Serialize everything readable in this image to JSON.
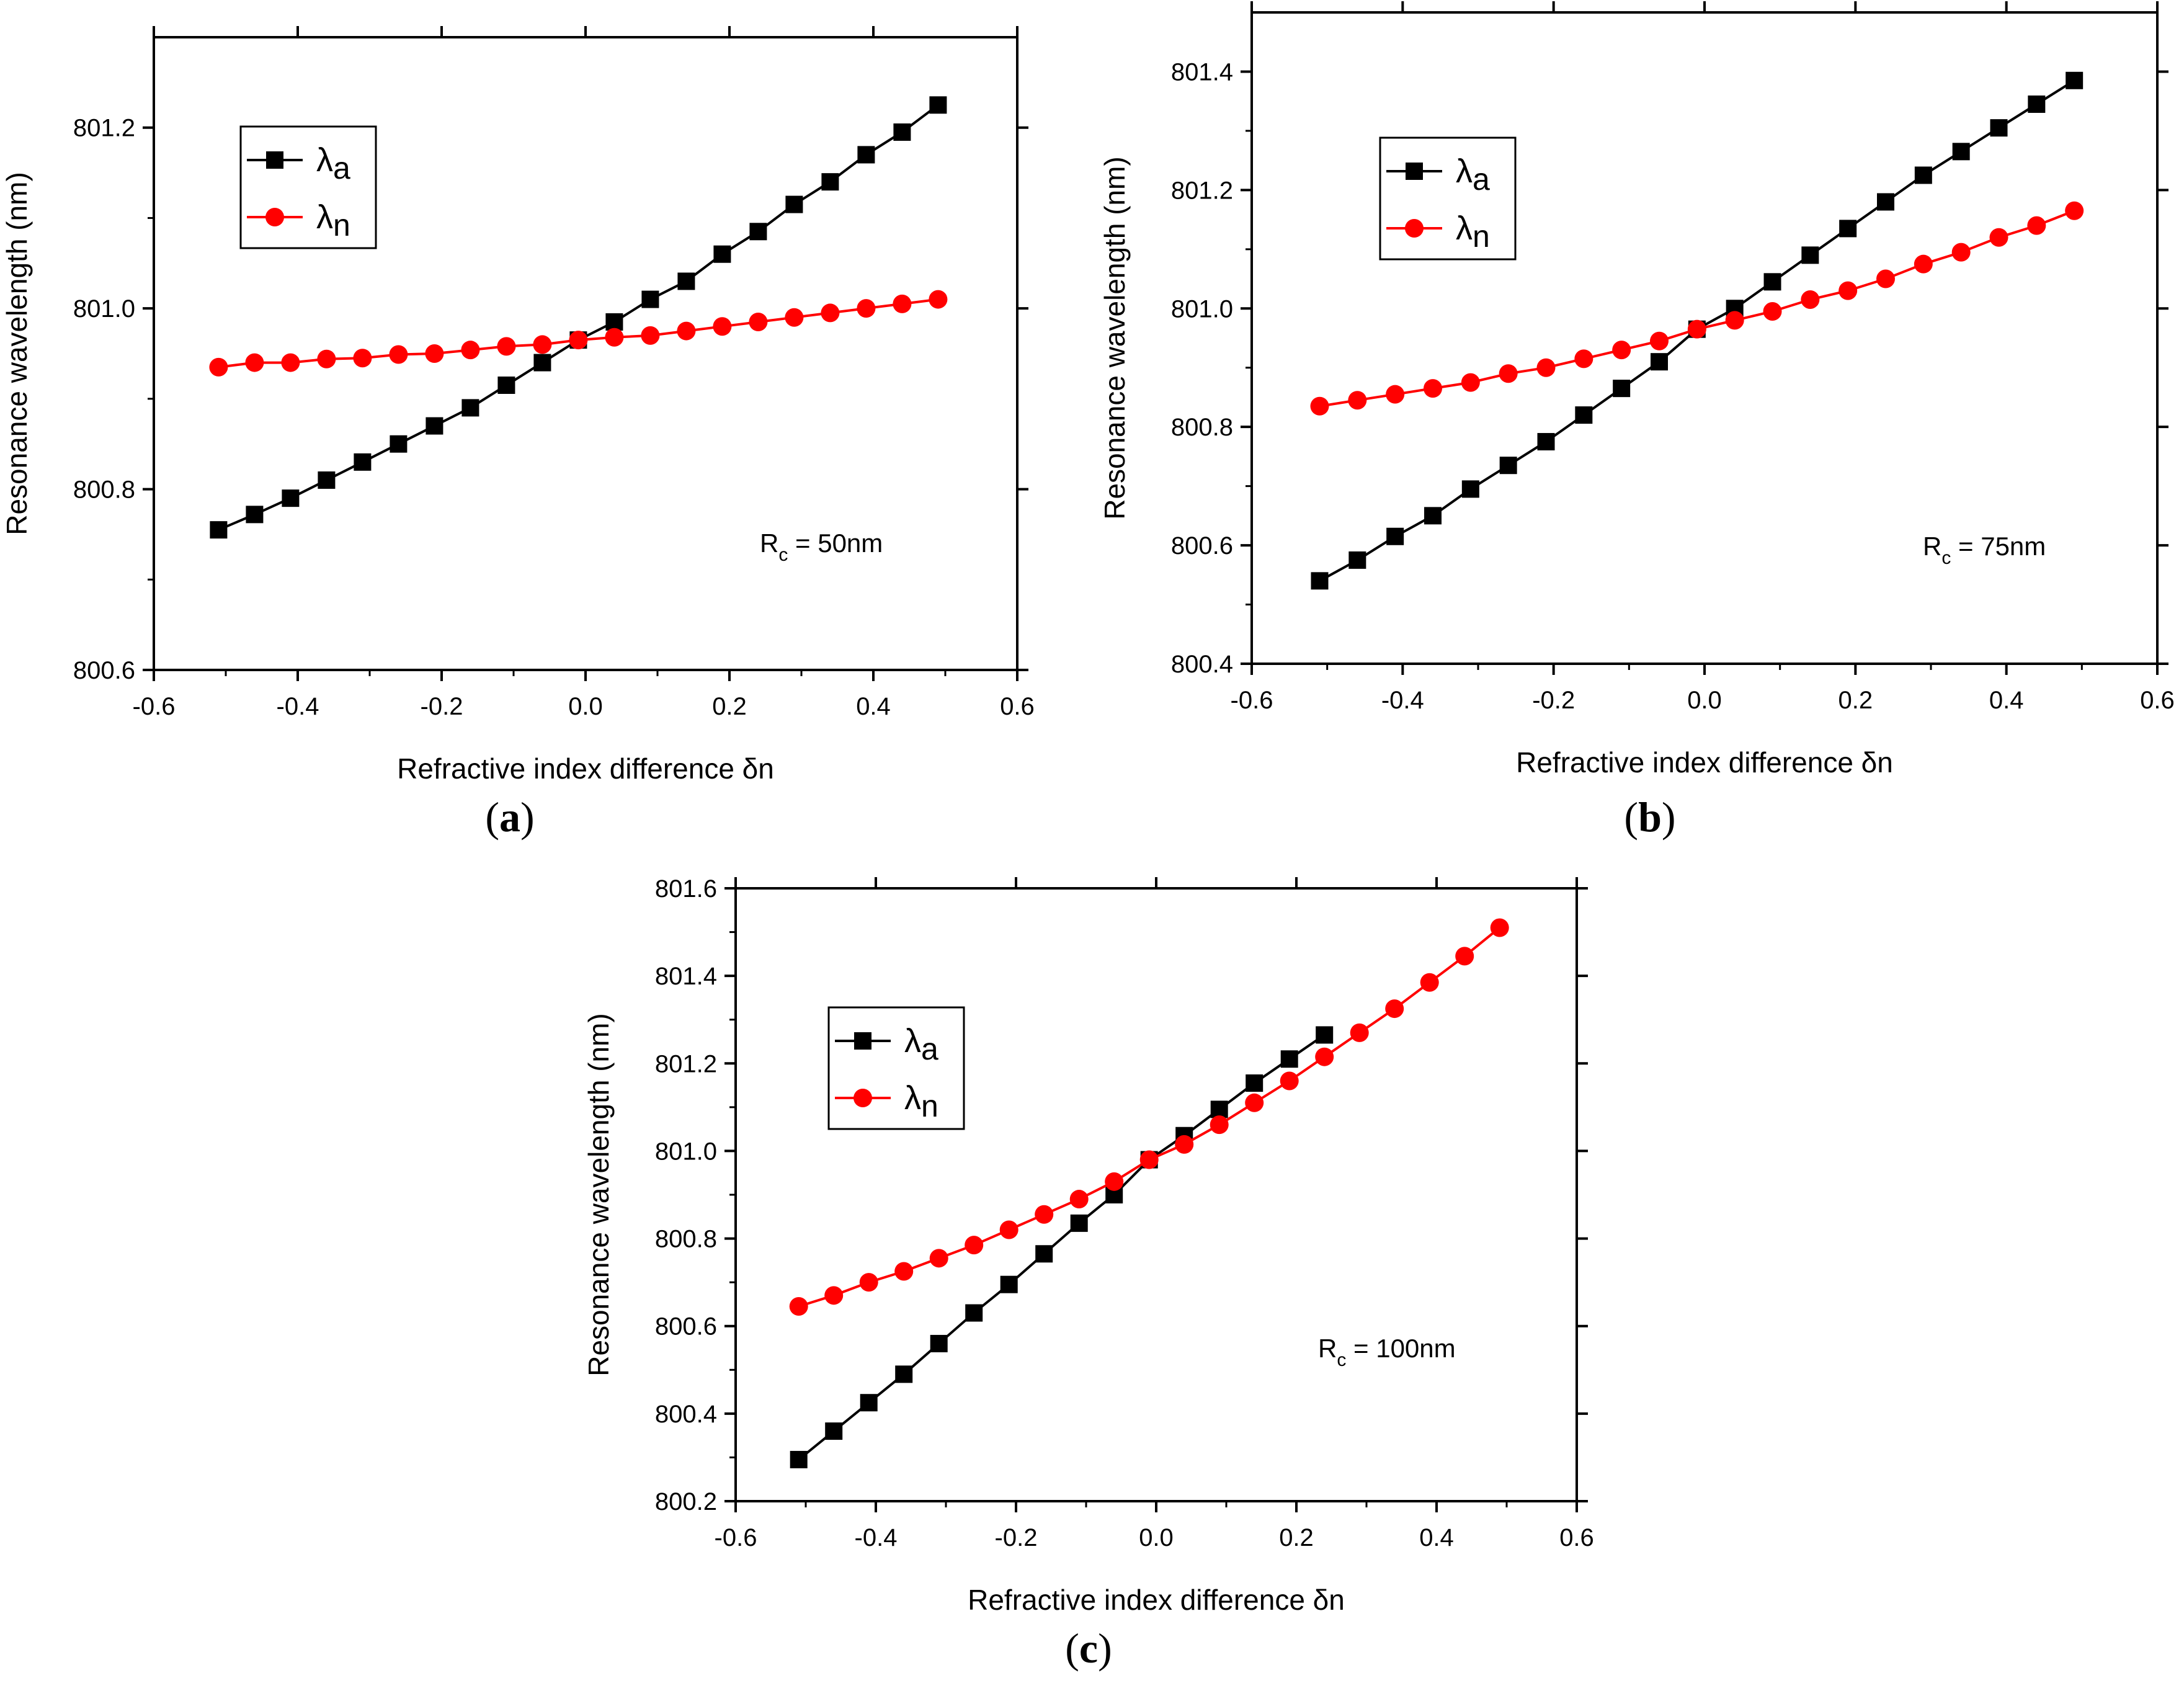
{
  "figure": {
    "colors": {
      "lambda_a": "#000000",
      "lambda_n": "#ff0000",
      "axis": "#000000",
      "background": "#ffffff"
    },
    "marker_shapes": {
      "lambda_a": "square",
      "lambda_n": "circle"
    }
  },
  "chart_data": [
    {
      "panel": "a",
      "panel_label": "a",
      "type": "line",
      "xlabel": "Refractive index difference δn",
      "ylabel": "Resonance wavelength (nm)",
      "xlim": [
        -0.6,
        0.6
      ],
      "ylim": [
        800.6,
        801.3
      ],
      "xticks": [
        "-0.6",
        "-0.4",
        "-0.2",
        "0.0",
        "0.2",
        "0.4",
        "0.6"
      ],
      "yticks": [
        "800.6",
        "800.8",
        "801.0",
        "801.2"
      ],
      "grid": false,
      "legend_position": "top-left",
      "annotation": {
        "main": "R",
        "sub": "c",
        "rest": " = 50nm"
      },
      "series": [
        {
          "name": "λa",
          "symbol": "λ",
          "subscript": "a",
          "x": [
            -0.51,
            -0.46,
            -0.41,
            -0.36,
            -0.31,
            -0.26,
            -0.21,
            -0.16,
            -0.11,
            -0.06,
            -0.01,
            0.04,
            0.09,
            0.14,
            0.19,
            0.24,
            0.29,
            0.34,
            0.39,
            0.44,
            0.49
          ],
          "values": [
            800.755,
            800.772,
            800.79,
            800.81,
            800.83,
            800.85,
            800.87,
            800.89,
            800.915,
            800.94,
            800.965,
            800.985,
            801.01,
            801.03,
            801.06,
            801.085,
            801.115,
            801.14,
            801.17,
            801.195,
            801.225
          ]
        },
        {
          "name": "λn",
          "symbol": "λ",
          "subscript": "n",
          "x": [
            -0.51,
            -0.46,
            -0.41,
            -0.36,
            -0.31,
            -0.26,
            -0.21,
            -0.16,
            -0.11,
            -0.06,
            -0.01,
            0.04,
            0.09,
            0.14,
            0.19,
            0.24,
            0.29,
            0.34,
            0.39,
            0.44,
            0.49
          ],
          "values": [
            800.935,
            800.94,
            800.94,
            800.944,
            800.945,
            800.949,
            800.95,
            800.954,
            800.958,
            800.96,
            800.965,
            800.968,
            800.97,
            800.975,
            800.98,
            800.985,
            800.99,
            800.995,
            801.0,
            801.005,
            801.01
          ]
        }
      ]
    },
    {
      "panel": "b",
      "panel_label": "b",
      "type": "line",
      "xlabel": "Refractive index difference δn",
      "ylabel": "Resonance wavelength (nm)",
      "xlim": [
        -0.6,
        0.6
      ],
      "ylim": [
        800.4,
        801.5
      ],
      "xticks": [
        "-0.6",
        "-0.4",
        "-0.2",
        "0.0",
        "0.2",
        "0.4",
        "0.6"
      ],
      "yticks": [
        "800.4",
        "800.6",
        "800.8",
        "801.0",
        "801.2",
        "801.4"
      ],
      "grid": false,
      "legend_position": "top-left",
      "annotation": {
        "main": "R",
        "sub": "c",
        "rest": " = 75nm"
      },
      "series": [
        {
          "name": "λa",
          "symbol": "λ",
          "subscript": "a",
          "x": [
            -0.51,
            -0.46,
            -0.41,
            -0.36,
            -0.31,
            -0.26,
            -0.21,
            -0.16,
            -0.11,
            -0.06,
            -0.01,
            0.04,
            0.09,
            0.14,
            0.19,
            0.24,
            0.29,
            0.34,
            0.39,
            0.44,
            0.49
          ],
          "values": [
            800.54,
            800.575,
            800.615,
            800.65,
            800.695,
            800.735,
            800.775,
            800.82,
            800.865,
            800.91,
            800.965,
            801.0,
            801.045,
            801.09,
            801.135,
            801.18,
            801.225,
            801.265,
            801.305,
            801.345,
            801.385
          ]
        },
        {
          "name": "λn",
          "symbol": "λ",
          "subscript": "n",
          "x": [
            -0.51,
            -0.46,
            -0.41,
            -0.36,
            -0.31,
            -0.26,
            -0.21,
            -0.16,
            -0.11,
            -0.06,
            -0.01,
            0.04,
            0.09,
            0.14,
            0.19,
            0.24,
            0.29,
            0.34,
            0.39,
            0.44,
            0.49
          ],
          "values": [
            800.835,
            800.845,
            800.855,
            800.865,
            800.875,
            800.89,
            800.9,
            800.915,
            800.93,
            800.945,
            800.965,
            800.98,
            800.995,
            801.015,
            801.03,
            801.05,
            801.075,
            801.095,
            801.12,
            801.14,
            801.165
          ]
        }
      ]
    },
    {
      "panel": "c",
      "panel_label": "c",
      "type": "line",
      "xlabel": "Refractive index difference δn",
      "ylabel": "Resonance wavelength (nm)",
      "xlim": [
        -0.6,
        0.6
      ],
      "ylim": [
        800.2,
        801.6
      ],
      "xticks": [
        "-0.6",
        "-0.4",
        "-0.2",
        "0.0",
        "0.2",
        "0.4",
        "0.6"
      ],
      "yticks": [
        "800.2",
        "800.4",
        "800.6",
        "800.8",
        "801.0",
        "801.2",
        "801.4",
        "801.6"
      ],
      "grid": false,
      "legend_position": "top-left",
      "annotation": {
        "main": "R",
        "sub": "c",
        "rest": " = 100nm"
      },
      "series": [
        {
          "name": "λa",
          "symbol": "λ",
          "subscript": "a",
          "x": [
            -0.51,
            -0.46,
            -0.41,
            -0.36,
            -0.31,
            -0.26,
            -0.21,
            -0.16,
            -0.11,
            -0.06,
            -0.01,
            0.04,
            0.09,
            0.14,
            0.19,
            0.24
          ],
          "values": [
            800.295,
            800.36,
            800.425,
            800.49,
            800.56,
            800.63,
            800.695,
            800.765,
            800.835,
            800.9,
            800.98,
            801.035,
            801.095,
            801.155,
            801.21,
            801.265
          ]
        },
        {
          "name": "λn",
          "symbol": "λ",
          "subscript": "n",
          "x": [
            -0.51,
            -0.46,
            -0.41,
            -0.36,
            -0.31,
            -0.26,
            -0.21,
            -0.16,
            -0.11,
            -0.06,
            -0.01,
            0.04,
            0.09,
            0.14,
            0.19,
            0.24,
            0.29,
            0.34,
            0.39,
            0.44,
            0.49
          ],
          "values": [
            800.645,
            800.67,
            800.7,
            800.725,
            800.755,
            800.785,
            800.82,
            800.855,
            800.89,
            800.93,
            800.98,
            801.015,
            801.06,
            801.11,
            801.16,
            801.215,
            801.27,
            801.325,
            801.385,
            801.445,
            801.51
          ]
        }
      ]
    }
  ]
}
